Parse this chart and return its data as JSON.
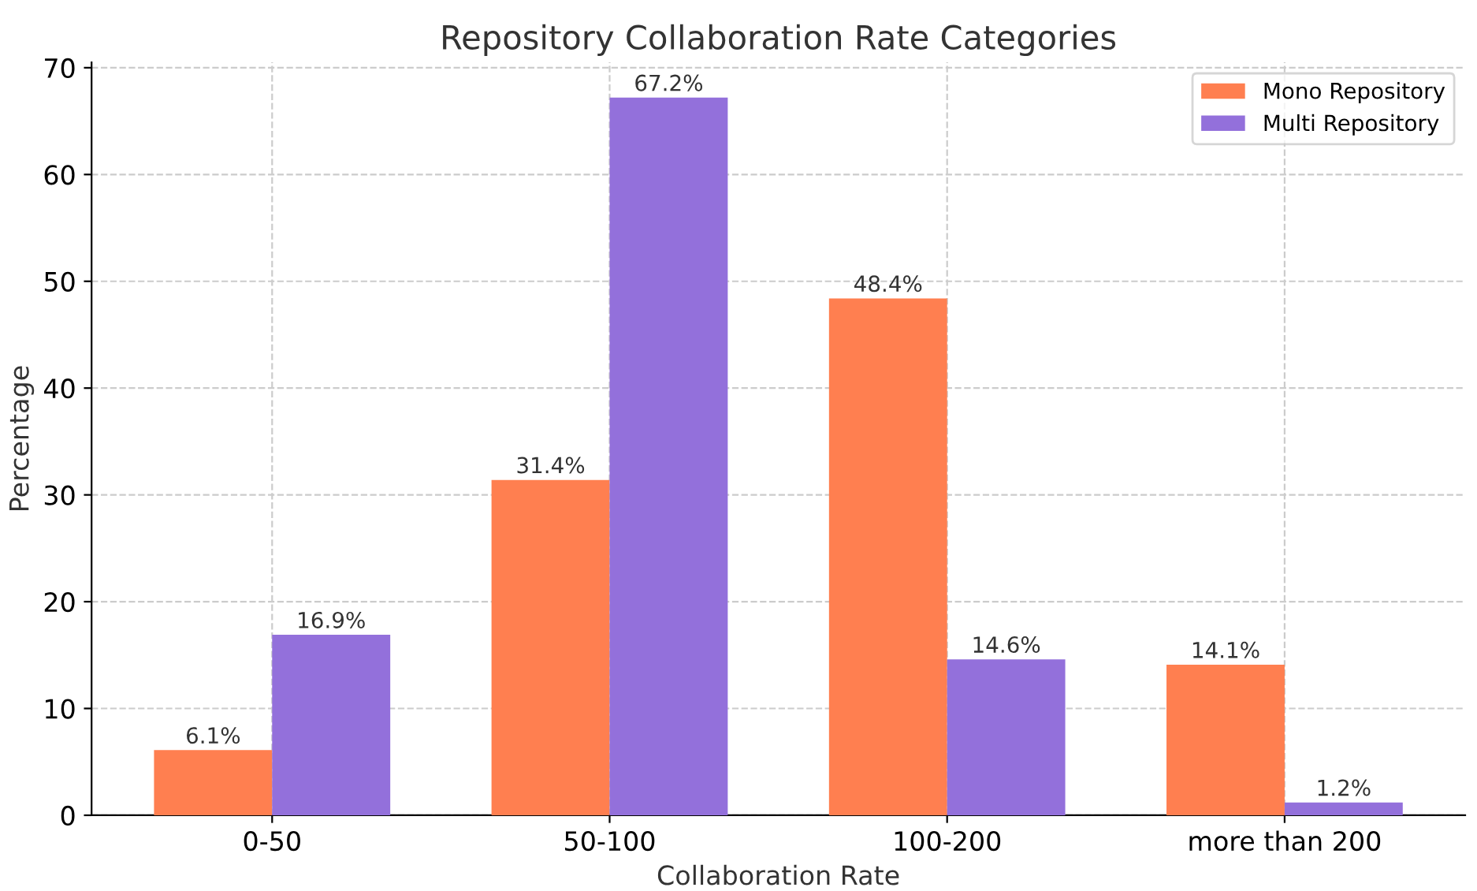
{
  "chart_data": {
    "type": "bar",
    "title": "Repository Collaboration Rate Categories",
    "xlabel": "Collaboration Rate",
    "ylabel": "Percentage",
    "categories": [
      "0-50",
      "50-100",
      "100-200",
      "more than 200"
    ],
    "series": [
      {
        "name": "Mono Repository",
        "color": "#ff7f50",
        "values": [
          6.1,
          31.4,
          48.4,
          14.1
        ],
        "value_labels": [
          "6.1%",
          "31.4%",
          "48.4%",
          "14.1%"
        ]
      },
      {
        "name": "Multi Repository",
        "color": "#9370db",
        "values": [
          16.9,
          67.2,
          14.6,
          1.2
        ],
        "value_labels": [
          "16.9%",
          "67.2%",
          "14.6%",
          "1.2%"
        ]
      }
    ],
    "ylim": [
      0,
      70.5
    ],
    "yticks": [
      0,
      10,
      20,
      30,
      40,
      50,
      60,
      70
    ],
    "grid": true,
    "legend": "top right"
  }
}
